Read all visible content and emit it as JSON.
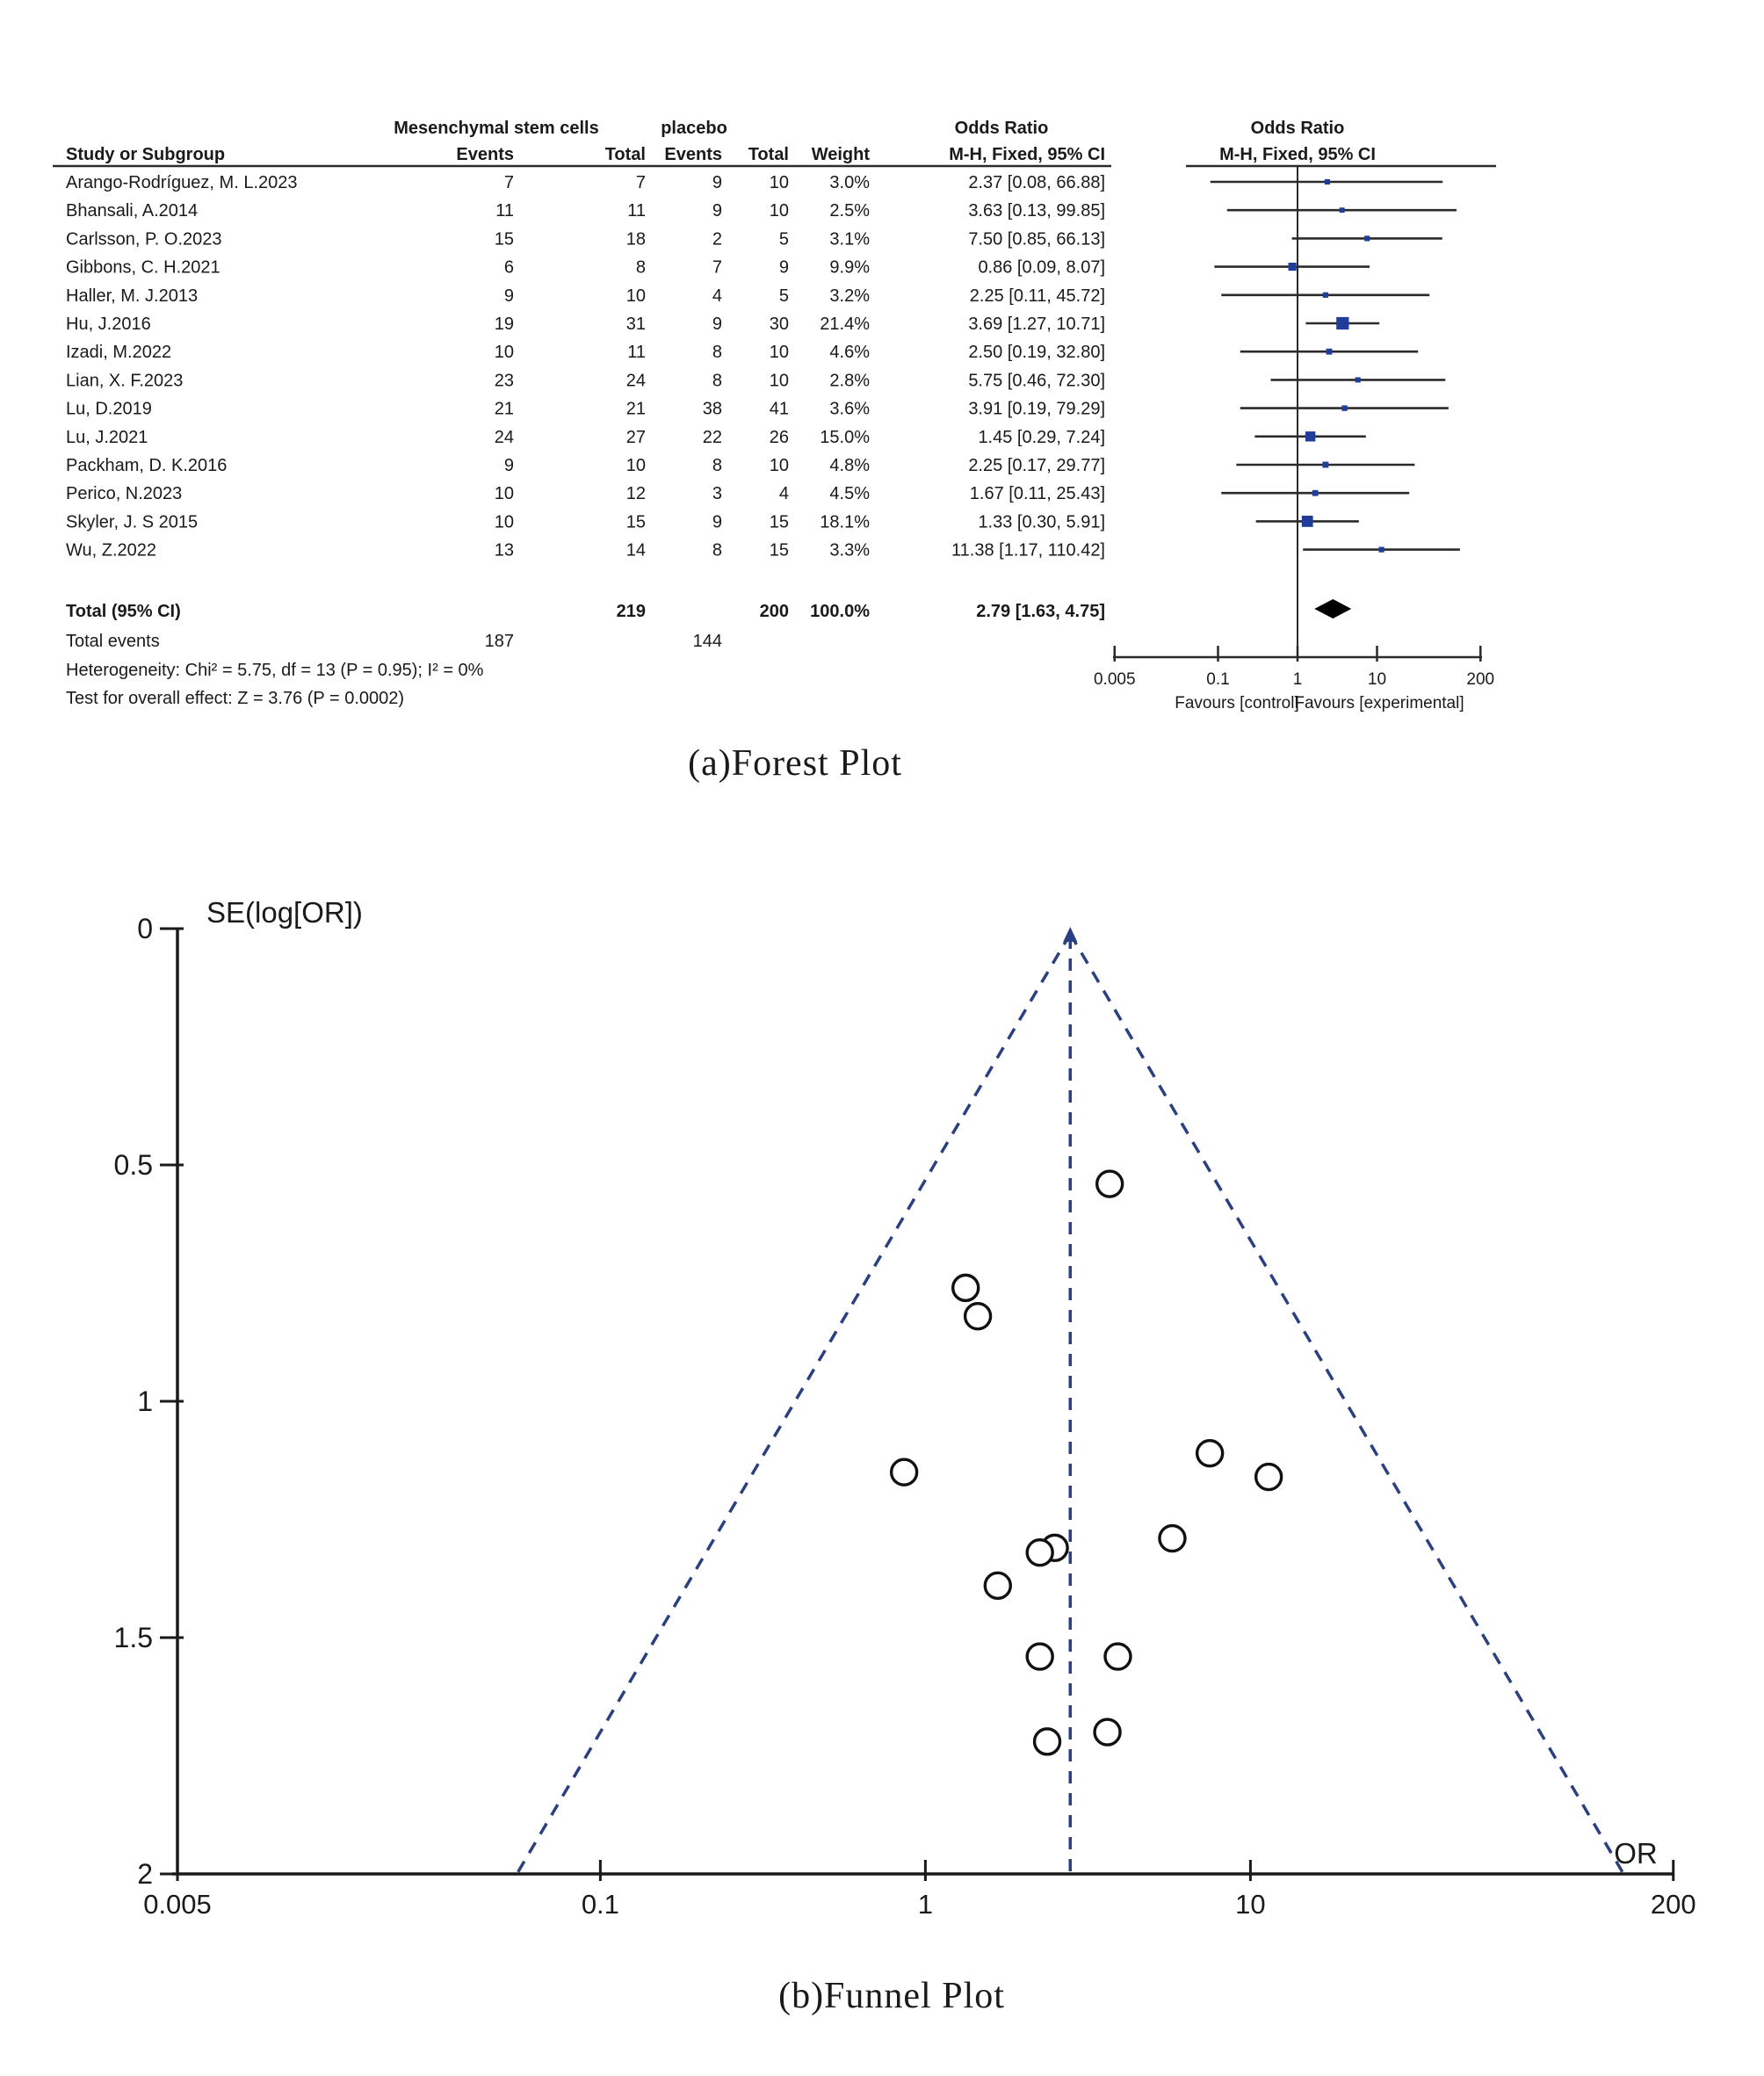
{
  "figure": {
    "background": "#ffffff"
  },
  "forest_plot": {
    "caption": "(a)Forest Plot",
    "headers": {
      "group1": "Mesenchymal stem cells",
      "group2": "placebo",
      "study": "Study or Subgroup",
      "events": "Events",
      "total": "Total",
      "weight": "Weight",
      "or_title": "Odds Ratio",
      "or_sub": "M-H, Fixed, 95% CI"
    },
    "total_row": {
      "label": "Total (95% CI)",
      "total1": "219",
      "total2": "200",
      "weight": "100.0%",
      "or_text": "2.79 [1.63, 4.75]",
      "or": 2.79,
      "ci_low": 1.63,
      "ci_high": 4.75
    },
    "total_events": {
      "label": "Total events",
      "events1": "187",
      "events2": "144"
    },
    "heterogeneity": "Heterogeneity: Chi² = 5.75, df = 13 (P = 0.95); I² = 0%",
    "overall_effect": "Test for overall effect: Z = 3.76 (P = 0.0002)",
    "axis_ticks": [
      "0.005",
      "0.1",
      "1",
      "10",
      "200"
    ],
    "favours_left": "Favours [control]",
    "favours_right": "Favours [experimental]",
    "colors": {
      "square": "#1f3d99",
      "diamond": "#000000",
      "line": "#2b2b2b"
    }
  },
  "funnel_plot": {
    "caption": "(b)Funnel Plot",
    "ylabel": "SE(log[OR])",
    "xlabel": "OR",
    "colors": {
      "dashed": "#2a4080",
      "point_stroke": "#111111"
    }
  },
  "chart_data": [
    {
      "type": "table",
      "title": "Forest plot: Mesenchymal stem cells vs placebo, Odds Ratio M-H, Fixed, 95% CI",
      "columns": [
        "Study or Subgroup",
        "MSC Events",
        "MSC Total",
        "Placebo Events",
        "Placebo Total",
        "Weight",
        "Odds Ratio M-H, Fixed, 95% CI"
      ],
      "rows": [
        {
          "study": "Arango-Rodríguez, M. L.2023",
          "events1": 7,
          "total1": 7,
          "events2": 9,
          "total2": 10,
          "weight": "3.0%",
          "or_text": "2.37 [0.08, 66.88]",
          "or": 2.37,
          "ci_low": 0.08,
          "ci_high": 66.88
        },
        {
          "study": "Bhansali, A.2014",
          "events1": 11,
          "total1": 11,
          "events2": 9,
          "total2": 10,
          "weight": "2.5%",
          "or_text": "3.63 [0.13, 99.85]",
          "or": 3.63,
          "ci_low": 0.13,
          "ci_high": 99.85
        },
        {
          "study": "Carlsson, P. O.2023",
          "events1": 15,
          "total1": 18,
          "events2": 2,
          "total2": 5,
          "weight": "3.1%",
          "or_text": "7.50 [0.85, 66.13]",
          "or": 7.5,
          "ci_low": 0.85,
          "ci_high": 66.13
        },
        {
          "study": "Gibbons, C. H.2021",
          "events1": 6,
          "total1": 8,
          "events2": 7,
          "total2": 9,
          "weight": "9.9%",
          "or_text": "0.86 [0.09, 8.07]",
          "or": 0.86,
          "ci_low": 0.09,
          "ci_high": 8.07
        },
        {
          "study": "Haller, M. J.2013",
          "events1": 9,
          "total1": 10,
          "events2": 4,
          "total2": 5,
          "weight": "3.2%",
          "or_text": "2.25 [0.11, 45.72]",
          "or": 2.25,
          "ci_low": 0.11,
          "ci_high": 45.72
        },
        {
          "study": "Hu, J.2016",
          "events1": 19,
          "total1": 31,
          "events2": 9,
          "total2": 30,
          "weight": "21.4%",
          "or_text": "3.69 [1.27, 10.71]",
          "or": 3.69,
          "ci_low": 1.27,
          "ci_high": 10.71
        },
        {
          "study": "Izadi, M.2022",
          "events1": 10,
          "total1": 11,
          "events2": 8,
          "total2": 10,
          "weight": "4.6%",
          "or_text": "2.50 [0.19, 32.80]",
          "or": 2.5,
          "ci_low": 0.19,
          "ci_high": 32.8
        },
        {
          "study": "Lian, X. F.2023",
          "events1": 23,
          "total1": 24,
          "events2": 8,
          "total2": 10,
          "weight": "2.8%",
          "or_text": "5.75 [0.46, 72.30]",
          "or": 5.75,
          "ci_low": 0.46,
          "ci_high": 72.3
        },
        {
          "study": "Lu, D.2019",
          "events1": 21,
          "total1": 21,
          "events2": 38,
          "total2": 41,
          "weight": "3.6%",
          "or_text": "3.91 [0.19, 79.29]",
          "or": 3.91,
          "ci_low": 0.19,
          "ci_high": 79.29
        },
        {
          "study": "Lu, J.2021",
          "events1": 24,
          "total1": 27,
          "events2": 22,
          "total2": 26,
          "weight": "15.0%",
          "or_text": "1.45 [0.29, 7.24]",
          "or": 1.45,
          "ci_low": 0.29,
          "ci_high": 7.24
        },
        {
          "study": "Packham, D. K.2016",
          "events1": 9,
          "total1": 10,
          "events2": 8,
          "total2": 10,
          "weight": "4.8%",
          "or_text": "2.25 [0.17, 29.77]",
          "or": 2.25,
          "ci_low": 0.17,
          "ci_high": 29.77
        },
        {
          "study": "Perico, N.2023",
          "events1": 10,
          "total1": 12,
          "events2": 3,
          "total2": 4,
          "weight": "4.5%",
          "or_text": "1.67 [0.11, 25.43]",
          "or": 1.67,
          "ci_low": 0.11,
          "ci_high": 25.43
        },
        {
          "study": "Skyler, J. S 2015",
          "events1": 10,
          "total1": 15,
          "events2": 9,
          "total2": 15,
          "weight": "18.1%",
          "or_text": "1.33 [0.30, 5.91]",
          "or": 1.33,
          "ci_low": 0.3,
          "ci_high": 5.91
        },
        {
          "study": "Wu, Z.2022",
          "events1": 13,
          "total1": 14,
          "events2": 8,
          "total2": 15,
          "weight": "3.3%",
          "or_text": "11.38 [1.17, 110.42]",
          "or": 11.38,
          "ci_low": 1.17,
          "ci_high": 110.42
        }
      ]
    },
    {
      "type": "scatter",
      "title": "Funnel plot",
      "xlabel": "OR",
      "ylabel": "SE(log[OR])",
      "x_scale": "log",
      "xlim": [
        0.005,
        200
      ],
      "ylim": [
        0,
        2
      ],
      "y_inverted": true,
      "center_or": 2.79,
      "se_max": 2,
      "funnel_bounds": "exp(ln(2.79) ± 1.96·SE)",
      "x_ticks": [
        "0.005",
        "0.1",
        "1",
        "10",
        "200"
      ],
      "y_ticks": [
        "0",
        "0.5",
        "1",
        "1.5",
        "2"
      ],
      "points": [
        {
          "or": 2.37,
          "se": 1.72
        },
        {
          "or": 3.63,
          "se": 1.7
        },
        {
          "or": 7.5,
          "se": 1.11
        },
        {
          "or": 0.86,
          "se": 1.15
        },
        {
          "or": 2.25,
          "se": 1.54
        },
        {
          "or": 3.69,
          "se": 0.54
        },
        {
          "or": 2.5,
          "se": 1.31
        },
        {
          "or": 5.75,
          "se": 1.29
        },
        {
          "or": 3.91,
          "se": 1.54
        },
        {
          "or": 1.45,
          "se": 0.82
        },
        {
          "or": 2.25,
          "se": 1.32
        },
        {
          "or": 1.67,
          "se": 1.39
        },
        {
          "or": 1.33,
          "se": 0.76
        },
        {
          "or": 11.38,
          "se": 1.16
        }
      ]
    }
  ]
}
